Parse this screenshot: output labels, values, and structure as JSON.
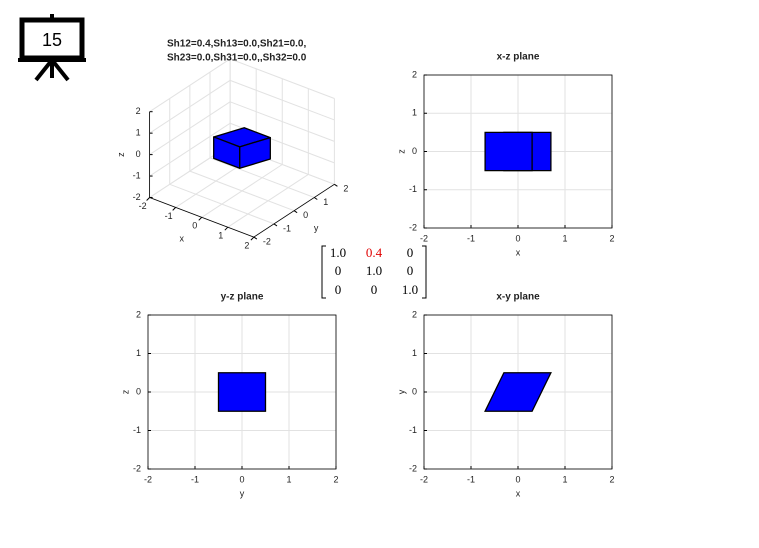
{
  "slide_number": "15",
  "matrix": {
    "rows": [
      [
        "1.0",
        "0.4",
        "0"
      ],
      [
        "0",
        "1.0",
        "0"
      ],
      [
        "0",
        "0",
        "1.0"
      ]
    ]
  },
  "chart_data": [
    {
      "type": "polygon3d",
      "title": [
        "Sh12=0.4,Sh13=0.0,Sh21=0.0,",
        "Sh23=0.0,Sh31=0.0,,Sh32=0.0"
      ],
      "xlabel": "x",
      "ylabel": "y",
      "zlabel": "z",
      "xlim": [
        -2,
        2
      ],
      "ylim": [
        -2,
        2
      ],
      "zlim": [
        -2,
        2
      ],
      "xticks": [
        -2,
        -1,
        0,
        1,
        2
      ],
      "yticks": [
        -2,
        -1,
        0,
        1,
        2
      ],
      "zticks": [
        -2,
        -1,
        0,
        1,
        2
      ],
      "grid": true,
      "color": "#0000ff",
      "faces": [
        {
          "x": [
            -0.7,
            0.3,
            0.7,
            -0.3
          ],
          "y": [
            -0.5,
            -0.5,
            0.5,
            0.5
          ],
          "z": [
            0.5,
            0.5,
            0.5,
            0.5
          ]
        },
        {
          "x": [
            -0.7,
            0.3,
            0.3,
            -0.7
          ],
          "y": [
            -0.5,
            -0.5,
            -0.5,
            -0.5
          ],
          "z": [
            -0.5,
            -0.5,
            0.5,
            0.5
          ]
        },
        {
          "x": [
            0.3,
            0.7,
            0.7,
            0.3
          ],
          "y": [
            -0.5,
            0.5,
            0.5,
            -0.5
          ],
          "z": [
            -0.5,
            -0.5,
            0.5,
            0.5
          ]
        }
      ]
    },
    {
      "type": "polygon",
      "title": "x-z plane",
      "xlabel": "x",
      "ylabel": "z",
      "xlim": [
        -2,
        2
      ],
      "ylim": [
        -2,
        2
      ],
      "xticks": [
        -2,
        -1,
        0,
        1,
        2
      ],
      "yticks": [
        -2,
        -1,
        0,
        1,
        2
      ],
      "grid": true,
      "color": "#0000ff",
      "polygons": [
        {
          "x": [
            -0.3,
            0.7,
            0.7,
            -0.3
          ],
          "y": [
            -0.5,
            -0.5,
            0.5,
            0.5
          ]
        },
        {
          "x": [
            -0.7,
            0.3,
            0.3,
            -0.7
          ],
          "y": [
            -0.5,
            -0.5,
            0.5,
            0.5
          ]
        }
      ]
    },
    {
      "type": "polygon",
      "title": "y-z plane",
      "xlabel": "y",
      "ylabel": "z",
      "xlim": [
        -2,
        2
      ],
      "ylim": [
        -2,
        2
      ],
      "xticks": [
        -2,
        -1,
        0,
        1,
        2
      ],
      "yticks": [
        -2,
        -1,
        0,
        1,
        2
      ],
      "grid": true,
      "color": "#0000ff",
      "polygons": [
        {
          "x": [
            -0.5,
            0.5,
            0.5,
            -0.5
          ],
          "y": [
            -0.5,
            -0.5,
            0.5,
            0.5
          ]
        }
      ]
    },
    {
      "type": "polygon",
      "title": "x-y plane",
      "xlabel": "x",
      "ylabel": "y",
      "xlim": [
        -2,
        2
      ],
      "ylim": [
        -2,
        2
      ],
      "xticks": [
        -2,
        -1,
        0,
        1,
        2
      ],
      "yticks": [
        -2,
        -1,
        0,
        1,
        2
      ],
      "grid": true,
      "color": "#0000ff",
      "polygons": [
        {
          "x": [
            -0.7,
            0.3,
            0.7,
            -0.3
          ],
          "y": [
            -0.5,
            -0.5,
            0.5,
            0.5
          ]
        }
      ]
    }
  ]
}
